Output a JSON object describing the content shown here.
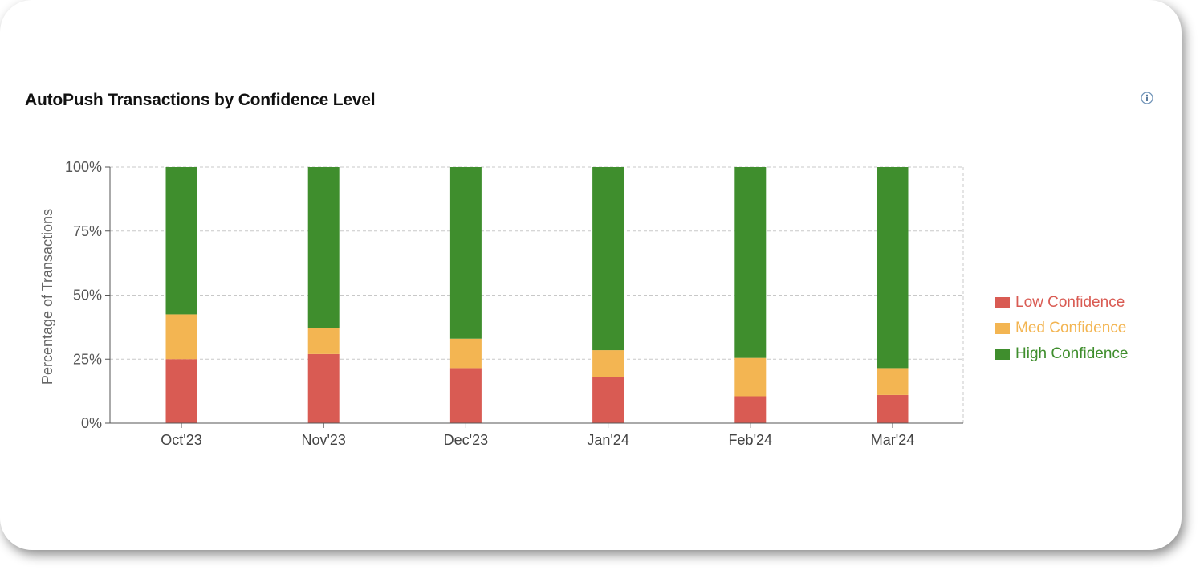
{
  "card": {
    "title": "AutoPush Transactions by Confidence Level",
    "info_icon": "info-icon"
  },
  "chart_data": {
    "type": "bar",
    "stacked": true,
    "title": "AutoPush Transactions by Confidence Level",
    "xlabel": "",
    "ylabel": "Percentage of Transactions",
    "ylim": [
      0,
      100
    ],
    "yticks": [
      "0%",
      "25%",
      "50%",
      "75%",
      "100%"
    ],
    "grid": true,
    "legend_position": "right",
    "categories": [
      "Oct'23",
      "Nov'23",
      "Dec'23",
      "Jan'24",
      "Feb'24",
      "Mar'24"
    ],
    "series": [
      {
        "name": "Low Confidence",
        "color": "#d95b53",
        "values": [
          25,
          27,
          21.5,
          18,
          10.5,
          11
        ]
      },
      {
        "name": "Med Confidence",
        "color": "#f3b552",
        "values": [
          17.5,
          10,
          11.5,
          10.5,
          15,
          10.5
        ]
      },
      {
        "name": "High Confidence",
        "color": "#3f8e2d",
        "values": [
          57.5,
          63,
          67,
          71.5,
          74.5,
          78.5
        ]
      }
    ]
  }
}
